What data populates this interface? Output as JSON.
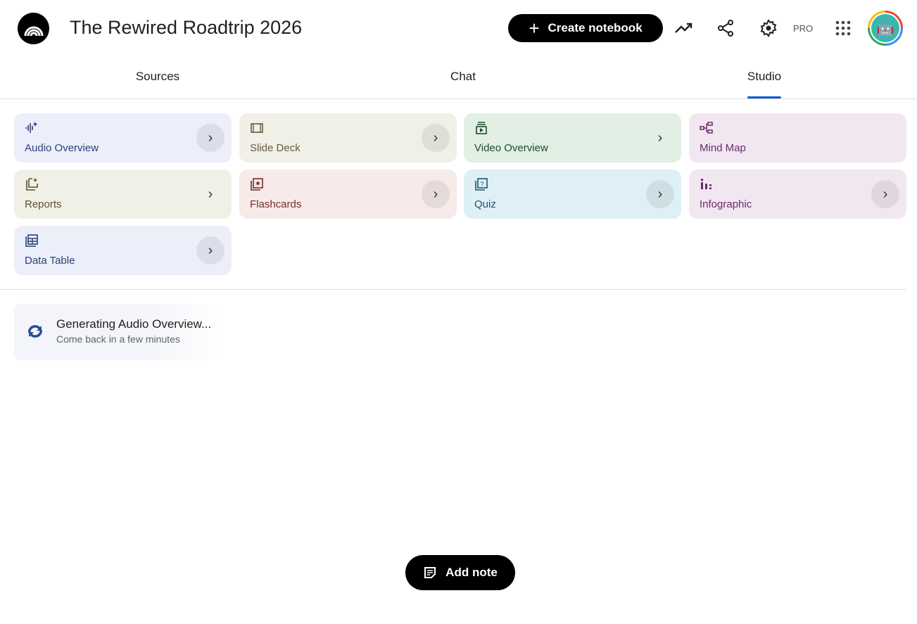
{
  "header": {
    "title": "The Rewired Roadtrip 2026",
    "create_label": "Create notebook",
    "pro_label": "PRO",
    "icons": [
      "notebooklm-logo-icon",
      "analytics-trend-icon",
      "share-icon",
      "settings-gear-icon",
      "apps-grid-icon",
      "avatar"
    ]
  },
  "tabs": [
    {
      "label": "Sources"
    },
    {
      "label": "Chat"
    },
    {
      "label": "Studio",
      "active": true
    }
  ],
  "studio": {
    "tools": [
      {
        "label": "Audio Overview",
        "icon": "audio-sparkle-icon",
        "bg": "#eceffa",
        "fg": "#2b3f77"
      },
      {
        "label": "Slide Deck",
        "icon": "slides-icon",
        "bg": "#f1f0e8",
        "fg": "#6a5a3a"
      },
      {
        "label": "Video Overview",
        "icon": "video-icon",
        "bg": "#e1efe4",
        "fg": "#1e4d2b"
      },
      {
        "label": "Mind Map",
        "icon": "mind-map-icon",
        "bg": "#f1e7f1",
        "fg": "#6b2a6b"
      },
      {
        "label": "Reports",
        "icon": "reports-icon",
        "bg": "#f1f0e6",
        "fg": "#5d5232"
      },
      {
        "label": "Flashcards",
        "icon": "flashcards-icon",
        "bg": "#f6ebe9",
        "fg": "#7a2b2b"
      },
      {
        "label": "Quiz",
        "icon": "quiz-icon",
        "bg": "#deeff5",
        "fg": "#1d5670"
      },
      {
        "label": "Infographic",
        "icon": "infographic-icon",
        "bg": "#f1e7f1",
        "fg": "#6b2a6b"
      },
      {
        "label": "Data Table",
        "icon": "data-table-icon",
        "bg": "#eceffa",
        "fg": "#2b3f77"
      }
    ]
  },
  "generating": {
    "title": "Generating Audio Overview...",
    "subtitle": "Come back in a few minutes"
  },
  "add_note_label": "Add note"
}
